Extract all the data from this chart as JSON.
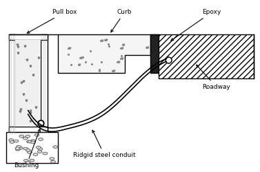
{
  "bg_color": "#ffffff",
  "line_color": "#000000",
  "concrete_dot_color": "#555555",
  "gravel_color": "#888888",
  "hatch_color": "#333333",
  "labels": {
    "pull_box": "Pull box",
    "curb": "Curb",
    "epoxy": "Epoxy",
    "roadway": "Roadway",
    "conduit": "Ridgid steel conduit",
    "bushing": "Bushing"
  },
  "figsize": [
    3.77,
    2.5
  ],
  "dpi": 100
}
